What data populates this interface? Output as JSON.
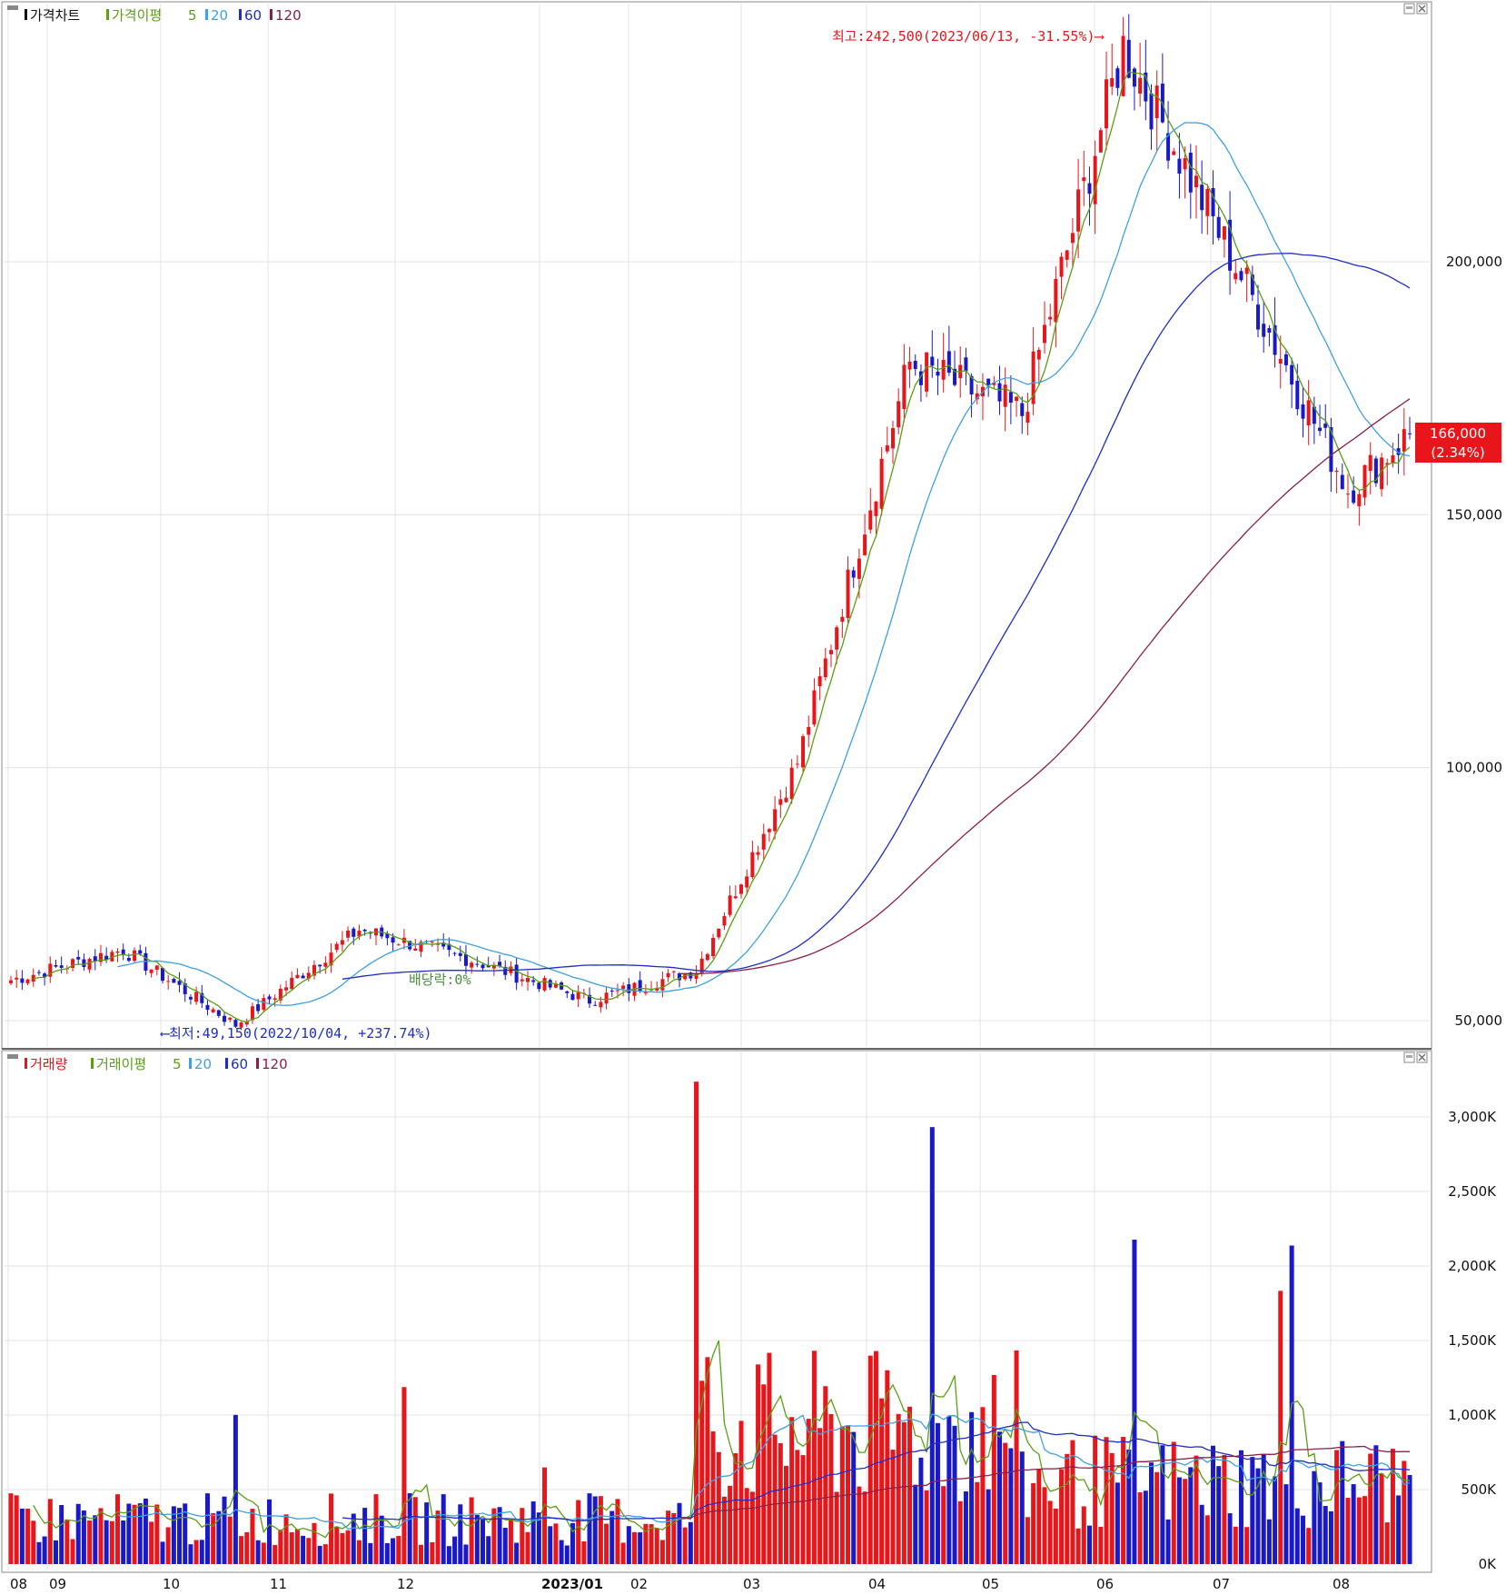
{
  "price_panel": {
    "legend": {
      "title": "가격차트",
      "ma_label": "가격이평",
      "ma5": "5",
      "ma20": "20",
      "ma60": "60",
      "ma120": "120"
    },
    "annotations": {
      "high": "최고:242,500(2023/06/13, -31.55%)⟶",
      "low": "⟵최저:49,150(2022/10/04, +237.74%)",
      "ex_dividend": "배당락:0%"
    },
    "current_price": "166,000",
    "current_change": "(2.34%)"
  },
  "volume_panel": {
    "legend": {
      "title": "거래량",
      "ma_label": "거래이평",
      "ma5": "5",
      "ma20": "20",
      "ma60": "60",
      "ma120": "120"
    }
  },
  "colors": {
    "up": "#e8161b",
    "down": "#1919c8",
    "ma5": "#5a9e14",
    "ma20": "#3fa0e0",
    "ma60": "#1f2dc4",
    "ma120": "#8a1f48",
    "annotation_high": "#e8161b",
    "annotation_low": "#1f2dc4"
  },
  "chart_data": [
    {
      "type": "candlestick",
      "title": "가격차트",
      "y_ticks": [
        "200,000",
        "150,000",
        "100,000",
        "50,000"
      ],
      "y_tick_values": [
        200000,
        150000,
        100000,
        50000
      ],
      "ylim": [
        45000,
        250000
      ],
      "x_ticks": [
        "08",
        "09",
        "10",
        "11",
        "12",
        "2023/01",
        "02",
        "03",
        "04",
        "05",
        "06",
        "07",
        "08"
      ],
      "grid": true,
      "price_anchors": [
        {
          "date": "2022-08",
          "close": 58000
        },
        {
          "date": "2022-09",
          "close": 64000
        },
        {
          "date": "2022-10-04",
          "close": 49150
        },
        {
          "date": "2022-11",
          "close": 68000
        },
        {
          "date": "2022-12",
          "close": 62000
        },
        {
          "date": "2023-01",
          "close": 54000
        },
        {
          "date": "2023-02",
          "close": 60000
        },
        {
          "date": "2023-03",
          "close": 101000
        },
        {
          "date": "2023-04",
          "close": 180000
        },
        {
          "date": "2023-05",
          "close": 170000
        },
        {
          "date": "2023-06-13",
          "close": 242500
        },
        {
          "date": "2023-07",
          "close": 195000
        },
        {
          "date": "2023-08",
          "close": 155000
        },
        {
          "date": "2023-08-end",
          "close": 166000
        }
      ],
      "series": [
        {
          "name": "5",
          "role": "moving average"
        },
        {
          "name": "20",
          "role": "moving average"
        },
        {
          "name": "60",
          "role": "moving average"
        },
        {
          "name": "120",
          "role": "moving average"
        }
      ]
    },
    {
      "type": "bar",
      "title": "거래량",
      "y_ticks": [
        "3,000K",
        "2,500K",
        "2,000K",
        "1,500K",
        "1,000K",
        "500K",
        "0K"
      ],
      "y_tick_values": [
        3000,
        2500,
        2000,
        1500,
        1000,
        500,
        0
      ],
      "ylim": [
        0,
        3300
      ],
      "unit": "K",
      "grid": true,
      "series": [
        {
          "name": "5",
          "role": "moving average"
        },
        {
          "name": "20",
          "role": "moving average"
        },
        {
          "name": "60",
          "role": "moving average"
        },
        {
          "name": "120",
          "role": "moving average"
        }
      ]
    }
  ]
}
